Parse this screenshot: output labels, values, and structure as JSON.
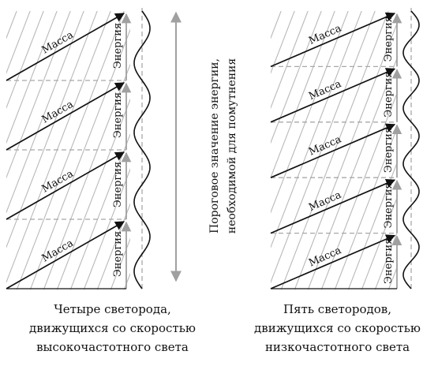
{
  "labels": {
    "mass": "Масса",
    "energy": "Энергия",
    "threshold_line1": "Пороговое значение энергии,",
    "threshold_line2": "необходимой для помутнения"
  },
  "captions": {
    "left": [
      "Четыре светорода,",
      "движущихся со скоростью",
      "высокочастотного света"
    ],
    "right": [
      "Пять светородов,",
      "движущихся со скоростью",
      "низкочастотного света"
    ]
  },
  "panels": {
    "left": {
      "count": 4
    },
    "right": {
      "count": 5
    }
  },
  "colors": {
    "ink": "#111111",
    "hatch": "#b8b8b8",
    "dashed": "#a8a8a8",
    "arrow_gray": "#a0a0a0"
  }
}
